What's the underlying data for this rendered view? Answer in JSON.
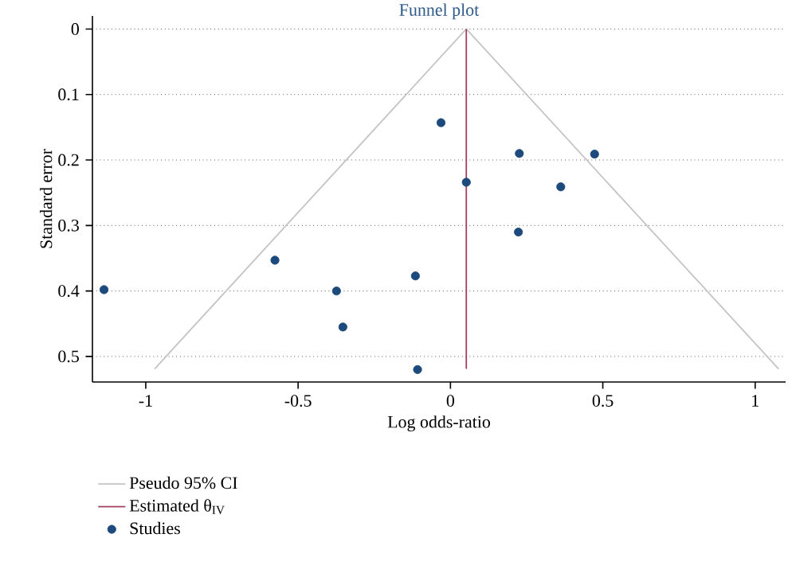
{
  "chart_data": {
    "type": "scatter",
    "title": "Funnel plot",
    "xlabel": "Log odds-ratio",
    "ylabel": "Standard error",
    "xlim": [
      -1.175,
      1.1
    ],
    "ylim": [
      0.539,
      -0.02
    ],
    "xticks": [
      -1,
      -0.5,
      0,
      0.5,
      1
    ],
    "yticks": [
      0,
      0.1,
      0.2,
      0.3,
      0.4,
      0.5
    ],
    "grid": "y",
    "legend": "bottom",
    "series": [
      {
        "name": "Pseudo 95% CI",
        "type": "line",
        "color": "#c4c4c4",
        "marker": "none",
        "x": [
          -0.971,
          0.052,
          1.077
        ],
        "values": [
          0.519,
          0,
          0.519
        ]
      },
      {
        "name": "Estimated θ$_{IV}$",
        "type": "line",
        "color": "#a3405e",
        "marker": "none",
        "x": [
          0.052,
          0.052
        ],
        "values": [
          0,
          0.519
        ]
      },
      {
        "name": "Studies",
        "type": "scatter",
        "color": "#1c4a7c",
        "marker": "circle",
        "x": [
          -0.031,
          0.226,
          0.473,
          0.052,
          0.362,
          0.223,
          -0.576,
          -1.137,
          -0.374,
          -0.115,
          -0.353,
          -0.108
        ],
        "values": [
          0.143,
          0.19,
          0.191,
          0.234,
          0.241,
          0.31,
          0.353,
          0.398,
          0.4,
          0.377,
          0.455,
          0.52
        ]
      }
    ]
  }
}
